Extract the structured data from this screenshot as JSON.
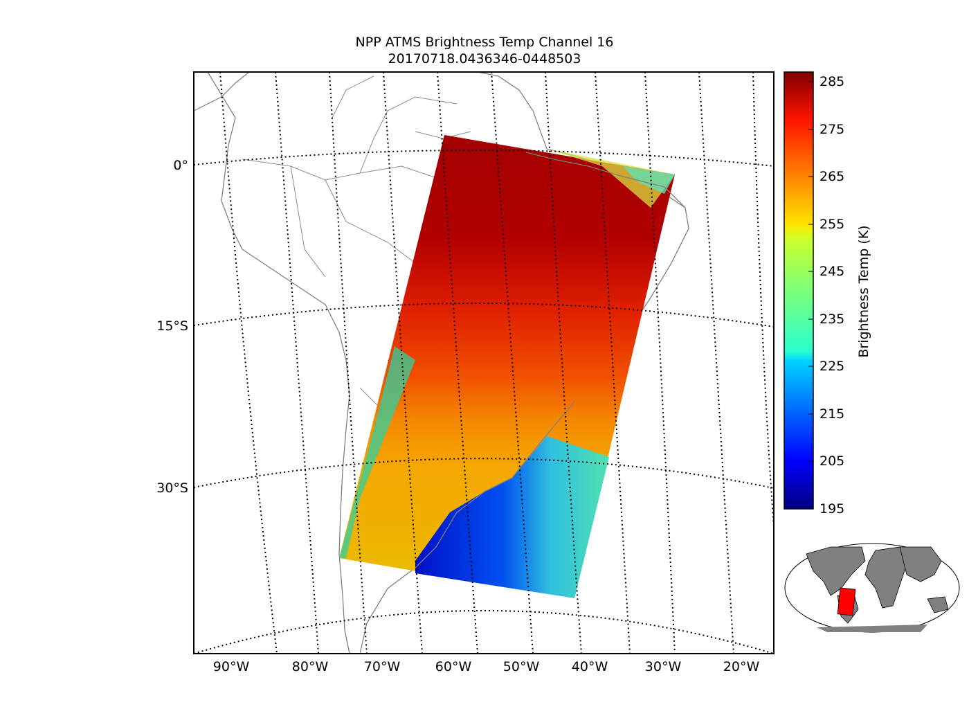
{
  "title": "NPP ATMS Brightness Temp Channel 16",
  "subtitle": "20170718.0436346-0448503",
  "map": {
    "region": "South America",
    "projection": "polar stereographic style with curved graticule",
    "parallels_labels": [
      "0°",
      "15°S",
      "30°S"
    ],
    "meridian_labels": [
      "90°W",
      "80°W",
      "70°W",
      "60°W",
      "50°W",
      "40°W",
      "30°W",
      "20°W"
    ],
    "swath_colors": {
      "north": "#a00000",
      "middle": "#e03000",
      "south_land": "#f0a000",
      "ocean_south": "#0010d0",
      "ocean_edge": "#30d8c0"
    },
    "coastline_color": "#808080",
    "graticule_style": "dotted black"
  },
  "colorbar": {
    "label": "Brightness Temp (K)",
    "ticks": [
      "285",
      "275",
      "265",
      "255",
      "245",
      "235",
      "225",
      "215",
      "205",
      "195"
    ],
    "min": 195,
    "max": 287,
    "colormap": "jet"
  },
  "inset": {
    "name": "world locator map",
    "land_color": "#808080",
    "highlight_color": "#ff0000"
  }
}
